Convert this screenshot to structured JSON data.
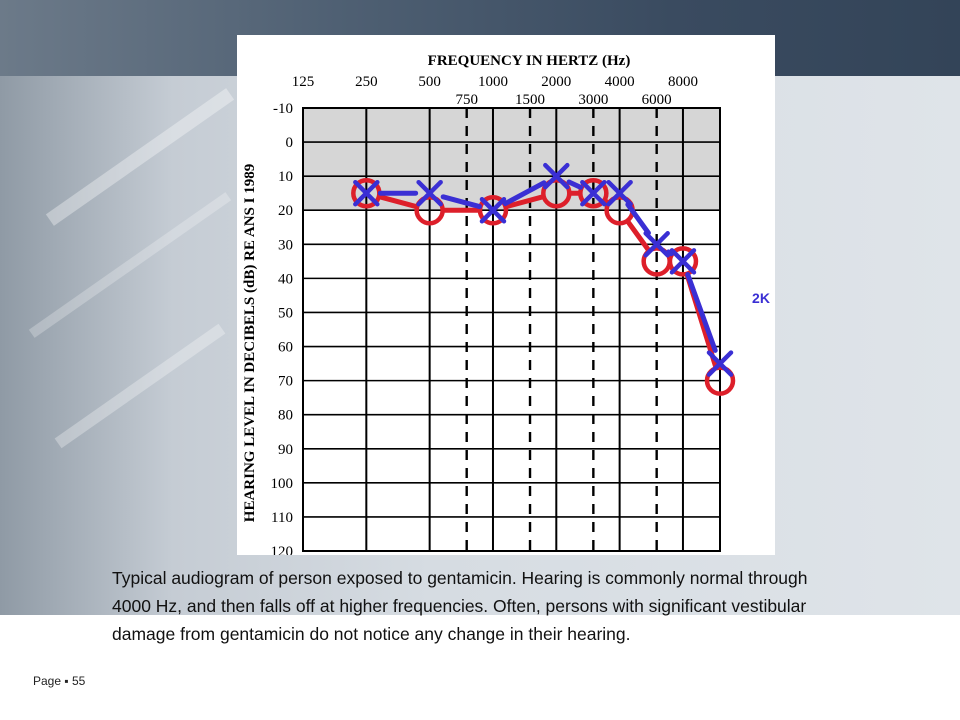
{
  "slide": {
    "caption": "Typical audiogram of person exposed to gentamicin. Hearing is commonly normal through 4000 Hz, and then falls off at higher frequencies. Often, persons with significant vestibular damage from gentamicin do not notice any change in their hearing.",
    "page_label": "Page",
    "page_number": "55"
  },
  "colors": {
    "right_ear": "#dd1f2a",
    "left_ear": "#3a2fd4",
    "normal_band": "#d6d6d6"
  },
  "chart_data": {
    "type": "line",
    "title": "FREQUENCY IN HERTZ (Hz)",
    "ylabel": "HEARING LEVEL IN DECIBELS (dB) RE ANS I 1989",
    "x_major_ticks": [
      "125",
      "250",
      "500",
      "1000",
      "2000",
      "4000",
      "8000"
    ],
    "x_minor_ticks": [
      "750",
      "1500",
      "3000",
      "6000"
    ],
    "y_ticks": [
      "-10",
      "0",
      "10",
      "20",
      "30",
      "40",
      "50",
      "60",
      "70",
      "80",
      "90",
      "100",
      "110",
      "120"
    ],
    "ylim": [
      -10,
      120
    ],
    "y_inverted": true,
    "shaded_band": [
      -10,
      20
    ],
    "annotation": "2K",
    "series": [
      {
        "marker": "circle",
        "x": [
          250,
          500,
          1000,
          2000,
          3000,
          4000,
          6000,
          8000,
          12000
        ],
        "y": [
          15,
          20,
          20,
          15,
          15,
          20,
          35,
          35,
          70
        ]
      },
      {
        "marker": "x",
        "x": [
          250,
          500,
          1000,
          2000,
          3000,
          4000,
          6000,
          8000,
          12000
        ],
        "y": [
          15,
          15,
          20,
          10,
          15,
          15,
          30,
          35,
          65
        ]
      }
    ]
  }
}
